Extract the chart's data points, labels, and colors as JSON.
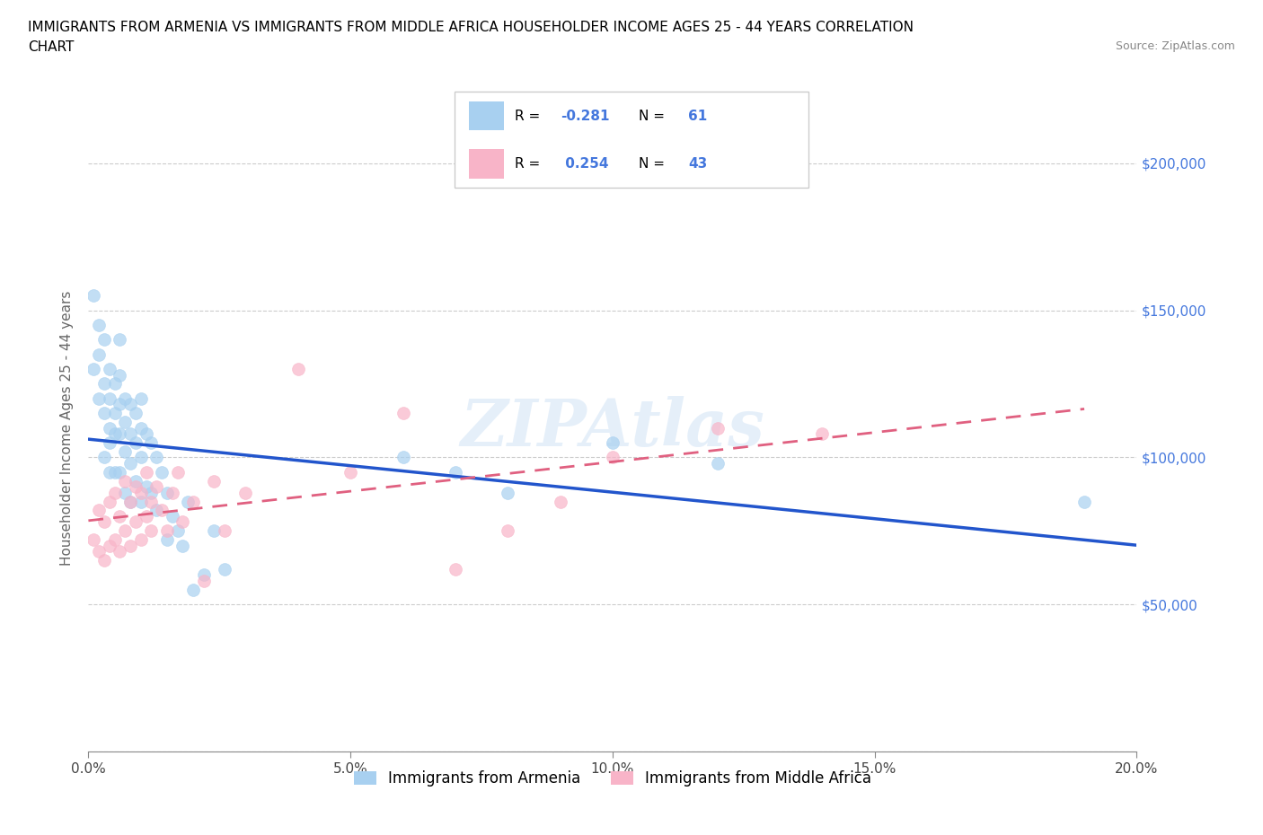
{
  "title_line1": "IMMIGRANTS FROM ARMENIA VS IMMIGRANTS FROM MIDDLE AFRICA HOUSEHOLDER INCOME AGES 25 - 44 YEARS CORRELATION",
  "title_line2": "CHART",
  "source": "Source: ZipAtlas.com",
  "ylabel": "Householder Income Ages 25 - 44 years",
  "xlim": [
    0.0,
    0.2
  ],
  "ylim": [
    0,
    220000
  ],
  "yticks": [
    0,
    50000,
    100000,
    150000,
    200000
  ],
  "xticks": [
    0.0,
    0.05,
    0.1,
    0.15,
    0.2
  ],
  "xtick_labels": [
    "0.0%",
    "5.0%",
    "10.0%",
    "15.0%",
    "20.0%"
  ],
  "right_ytick_labels": [
    "",
    "$50,000",
    "$100,000",
    "$150,000",
    "$200,000"
  ],
  "color_armenia": "#a8d0f0",
  "color_middle_africa": "#f8b4c8",
  "line_color_armenia": "#2255cc",
  "line_color_middle_africa": "#e06080",
  "R_armenia": -0.281,
  "N_armenia": 61,
  "R_middle_africa": 0.254,
  "N_middle_africa": 43,
  "legend_R_color": "#4477dd",
  "watermark": "ZIPAtlas",
  "armenia_x": [
    0.001,
    0.001,
    0.002,
    0.002,
    0.002,
    0.003,
    0.003,
    0.003,
    0.003,
    0.004,
    0.004,
    0.004,
    0.004,
    0.004,
    0.005,
    0.005,
    0.005,
    0.005,
    0.006,
    0.006,
    0.006,
    0.006,
    0.006,
    0.007,
    0.007,
    0.007,
    0.007,
    0.008,
    0.008,
    0.008,
    0.008,
    0.009,
    0.009,
    0.009,
    0.01,
    0.01,
    0.01,
    0.01,
    0.011,
    0.011,
    0.012,
    0.012,
    0.013,
    0.013,
    0.014,
    0.015,
    0.015,
    0.016,
    0.017,
    0.018,
    0.019,
    0.02,
    0.022,
    0.024,
    0.026,
    0.06,
    0.07,
    0.08,
    0.1,
    0.12,
    0.19
  ],
  "armenia_y": [
    155000,
    130000,
    145000,
    135000,
    120000,
    140000,
    125000,
    115000,
    100000,
    130000,
    120000,
    110000,
    105000,
    95000,
    125000,
    115000,
    108000,
    95000,
    140000,
    128000,
    118000,
    108000,
    95000,
    120000,
    112000,
    102000,
    88000,
    118000,
    108000,
    98000,
    85000,
    115000,
    105000,
    92000,
    120000,
    110000,
    100000,
    85000,
    108000,
    90000,
    105000,
    88000,
    100000,
    82000,
    95000,
    88000,
    72000,
    80000,
    75000,
    70000,
    85000,
    55000,
    60000,
    75000,
    62000,
    100000,
    95000,
    88000,
    105000,
    98000,
    85000
  ],
  "middle_africa_x": [
    0.001,
    0.002,
    0.002,
    0.003,
    0.003,
    0.004,
    0.004,
    0.005,
    0.005,
    0.006,
    0.006,
    0.007,
    0.007,
    0.008,
    0.008,
    0.009,
    0.009,
    0.01,
    0.01,
    0.011,
    0.011,
    0.012,
    0.012,
    0.013,
    0.014,
    0.015,
    0.016,
    0.017,
    0.018,
    0.02,
    0.022,
    0.024,
    0.026,
    0.03,
    0.04,
    0.05,
    0.06,
    0.07,
    0.08,
    0.09,
    0.1,
    0.12,
    0.14
  ],
  "middle_africa_y": [
    72000,
    68000,
    82000,
    65000,
    78000,
    70000,
    85000,
    72000,
    88000,
    68000,
    80000,
    75000,
    92000,
    70000,
    85000,
    78000,
    90000,
    72000,
    88000,
    80000,
    95000,
    75000,
    85000,
    90000,
    82000,
    75000,
    88000,
    95000,
    78000,
    85000,
    58000,
    92000,
    75000,
    88000,
    130000,
    95000,
    115000,
    62000,
    75000,
    85000,
    100000,
    110000,
    108000
  ]
}
